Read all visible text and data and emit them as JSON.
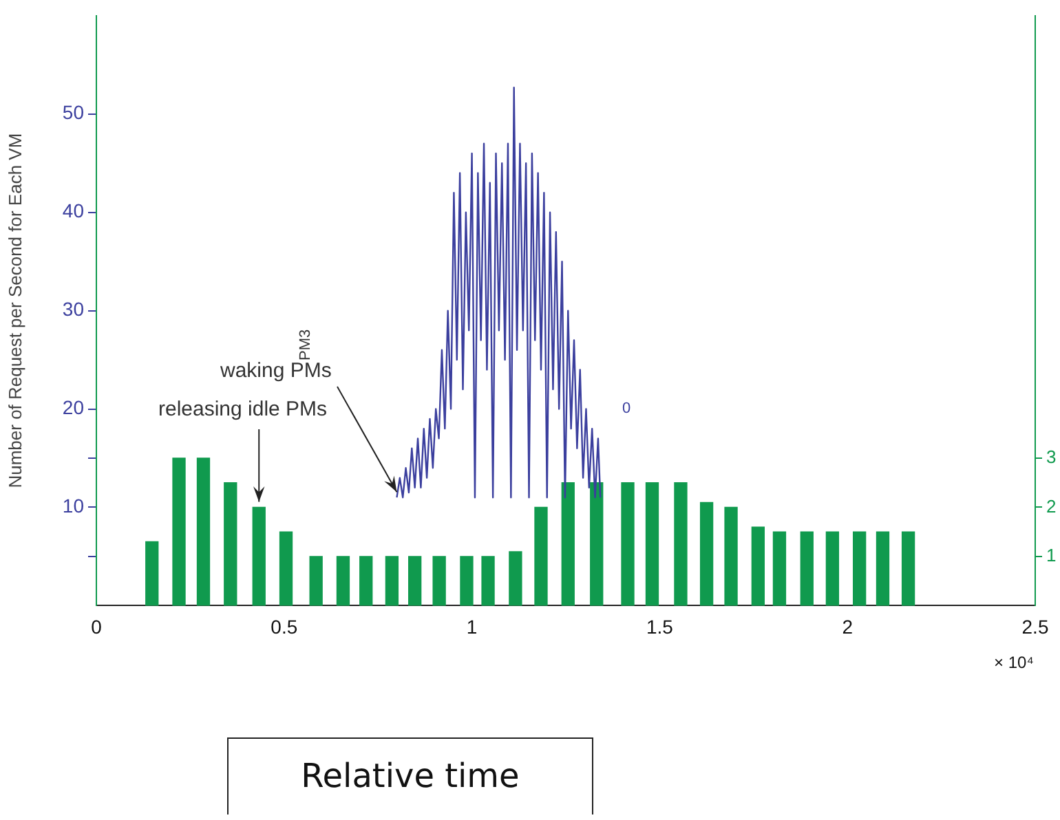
{
  "chart_data": {
    "type": "bar",
    "ylabel": "Number of Request per Second for Each VM",
    "xlabel": "Relative time",
    "xlim": [
      0,
      2.5
    ],
    "xticks": [
      0,
      0.5,
      1,
      1.5,
      2,
      2.5
    ],
    "ylim": [
      0,
      60
    ],
    "yticks": [
      {
        "value": 5,
        "label": null
      },
      10,
      {
        "value": 15,
        "label": null
      },
      20,
      30,
      40,
      50
    ],
    "y2lim": [
      0,
      12
    ],
    "y2ticks": [
      1,
      2,
      3
    ],
    "grid": false,
    "legend": false,
    "series": [
      {
        "axis": "y2",
        "color": "#109a4e",
        "x": [
          0.148,
          0.22,
          0.285,
          0.357,
          0.433,
          0.505,
          0.585,
          0.657,
          0.718,
          0.787,
          0.848,
          0.913,
          0.986,
          1.043,
          1.116,
          1.184,
          1.256,
          1.332,
          1.415,
          1.48,
          1.556,
          1.625,
          1.69,
          1.762,
          1.819,
          1.892,
          1.96,
          2.032,
          2.094,
          2.162
        ],
        "values": [
          1.3,
          3,
          3,
          2.5,
          2,
          1.5,
          1,
          1,
          1,
          1,
          1,
          1,
          1,
          1,
          1.1,
          2,
          2.5,
          2.5,
          2.5,
          2.5,
          2.5,
          2.1,
          2,
          1.6,
          1.5,
          1.5,
          1.5,
          1.5,
          1.5,
          1.5
        ]
      },
      {
        "type": "line",
        "color": "#3b3f9e",
        "x": [
          0.8,
          0.808,
          0.816,
          0.824,
          0.832,
          0.84,
          0.848,
          0.856,
          0.864,
          0.872,
          0.88,
          0.888,
          0.896,
          0.904,
          0.912,
          0.92,
          0.928,
          0.936,
          0.944,
          0.952,
          0.96,
          0.968,
          0.976,
          0.984,
          0.992,
          1.0,
          1.008,
          1.016,
          1.024,
          1.032,
          1.04,
          1.048,
          1.056,
          1.064,
          1.072,
          1.08,
          1.088,
          1.096,
          1.104,
          1.112,
          1.12,
          1.128,
          1.136,
          1.144,
          1.152,
          1.16,
          1.168,
          1.176,
          1.184,
          1.192,
          1.2,
          1.208,
          1.216,
          1.224,
          1.232,
          1.24,
          1.248,
          1.256,
          1.264,
          1.272,
          1.28,
          1.288,
          1.296,
          1.304,
          1.312,
          1.32,
          1.328,
          1.336,
          1.342
        ],
        "values": [
          11,
          13,
          11,
          14,
          11.5,
          16,
          12,
          17,
          12,
          18,
          13,
          19,
          14,
          20,
          17,
          26,
          18,
          30,
          20,
          42,
          25,
          44,
          22,
          40,
          28,
          46,
          11,
          44,
          27,
          47,
          24,
          43,
          11,
          46,
          28,
          45,
          25,
          47,
          11,
          52.7,
          26,
          47,
          28,
          45,
          11,
          46,
          27,
          44,
          24,
          42,
          11,
          40,
          22,
          38,
          20,
          35,
          11,
          30,
          18,
          27,
          16,
          24,
          13,
          20,
          12,
          18,
          11,
          17,
          11
        ]
      }
    ],
    "annotations": [
      {
        "text": "waking PMs",
        "x": 0.8,
        "y": 11
      },
      {
        "text": "releasing idle PMs",
        "x": 0.433,
        "y": 10
      },
      "PM3",
      "0",
      "× 10⁴"
    ]
  }
}
